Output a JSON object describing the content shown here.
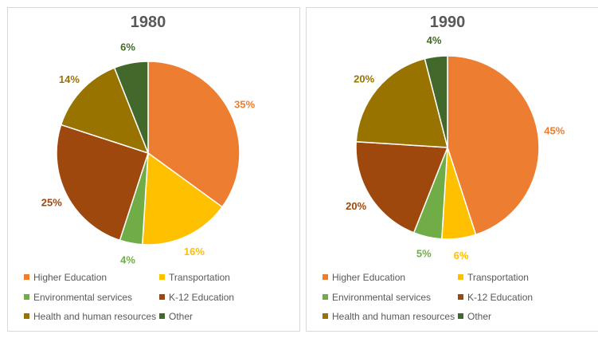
{
  "chart_data": [
    {
      "type": "pie",
      "title": "1980",
      "categories": [
        "Higher Education",
        "Transportation",
        "Environmental services",
        "K-12 Education",
        "Health and human resources",
        "Other"
      ],
      "values": [
        35,
        16,
        4,
        25,
        14,
        6
      ],
      "labels": [
        "35%",
        "16%",
        "4%",
        "25%",
        "14%",
        "6%"
      ],
      "colors": [
        "#ED7D31",
        "#FFC000",
        "#70AD47",
        "#9E480E",
        "#997300",
        "#43682B"
      ],
      "legend_position": "bottom"
    },
    {
      "type": "pie",
      "title": "1990",
      "categories": [
        "Higher Education",
        "Transportation",
        "Environmental services",
        "K-12 Education",
        "Health and human resources",
        "Other"
      ],
      "values": [
        45,
        6,
        5,
        20,
        20,
        4
      ],
      "labels": [
        "45%",
        "6%",
        "5%",
        "20%",
        "20%",
        "4%"
      ],
      "colors": [
        "#ED7D31",
        "#FFC000",
        "#70AD47",
        "#9E480E",
        "#997300",
        "#43682B"
      ],
      "legend_position": "bottom"
    }
  ]
}
